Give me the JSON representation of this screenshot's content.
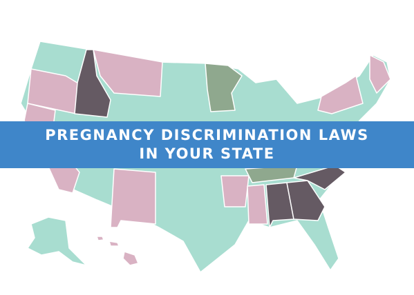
{
  "banner": {
    "line1": "PREGNANCY DISCRIMINATION LAWS",
    "line2": "IN YOUR STATE"
  }
}
